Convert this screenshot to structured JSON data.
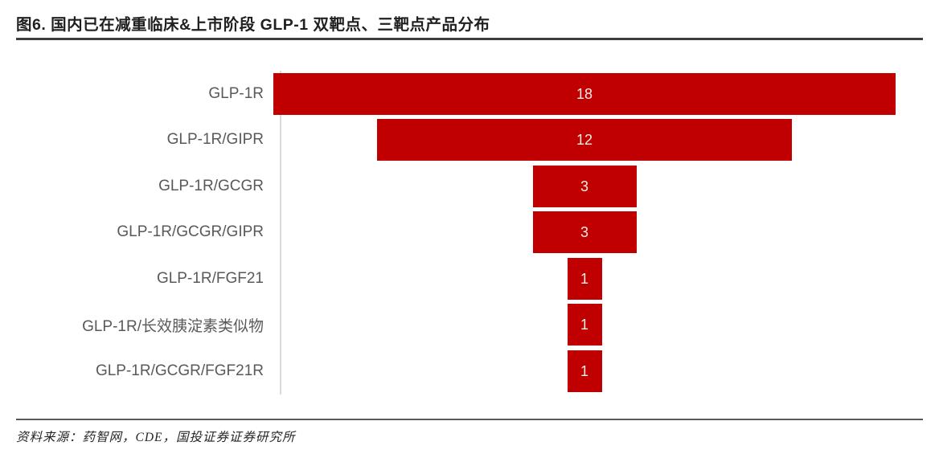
{
  "header": {
    "title": "图6. 国内已在减重临床&上市阶段 GLP-1 双靶点、三靶点产品分布"
  },
  "chart_data": {
    "type": "bar",
    "subtype": "centered-funnel",
    "orientation": "horizontal",
    "title": "国内已在减重临床&上市阶段 GLP-1 双靶点、三靶点产品分布",
    "categories": [
      "GLP-1R",
      "GLP-1R/GIPR",
      "GLP-1R/GCGR",
      "GLP-1R/GCGR/GIPR",
      "GLP-1R/FGF21",
      "GLP-1R/长效胰淀素类似物",
      "GLP-1R/GCGR/FGF21R"
    ],
    "values": [
      18,
      12,
      3,
      3,
      1,
      1,
      1
    ],
    "value_labels": [
      "18",
      "12",
      "3",
      "3",
      "1",
      "1",
      "1"
    ],
    "max_value": 18,
    "xlabel": "",
    "ylabel": "",
    "grid": false,
    "legend": false,
    "colors": {
      "bar": "#c00000",
      "category_label": "#595959",
      "value_label": "#f3eee4",
      "axis_line": "#d9d9d9"
    }
  },
  "footer": {
    "source": "资料来源：药智网，CDE，国投证券证券研究所"
  }
}
